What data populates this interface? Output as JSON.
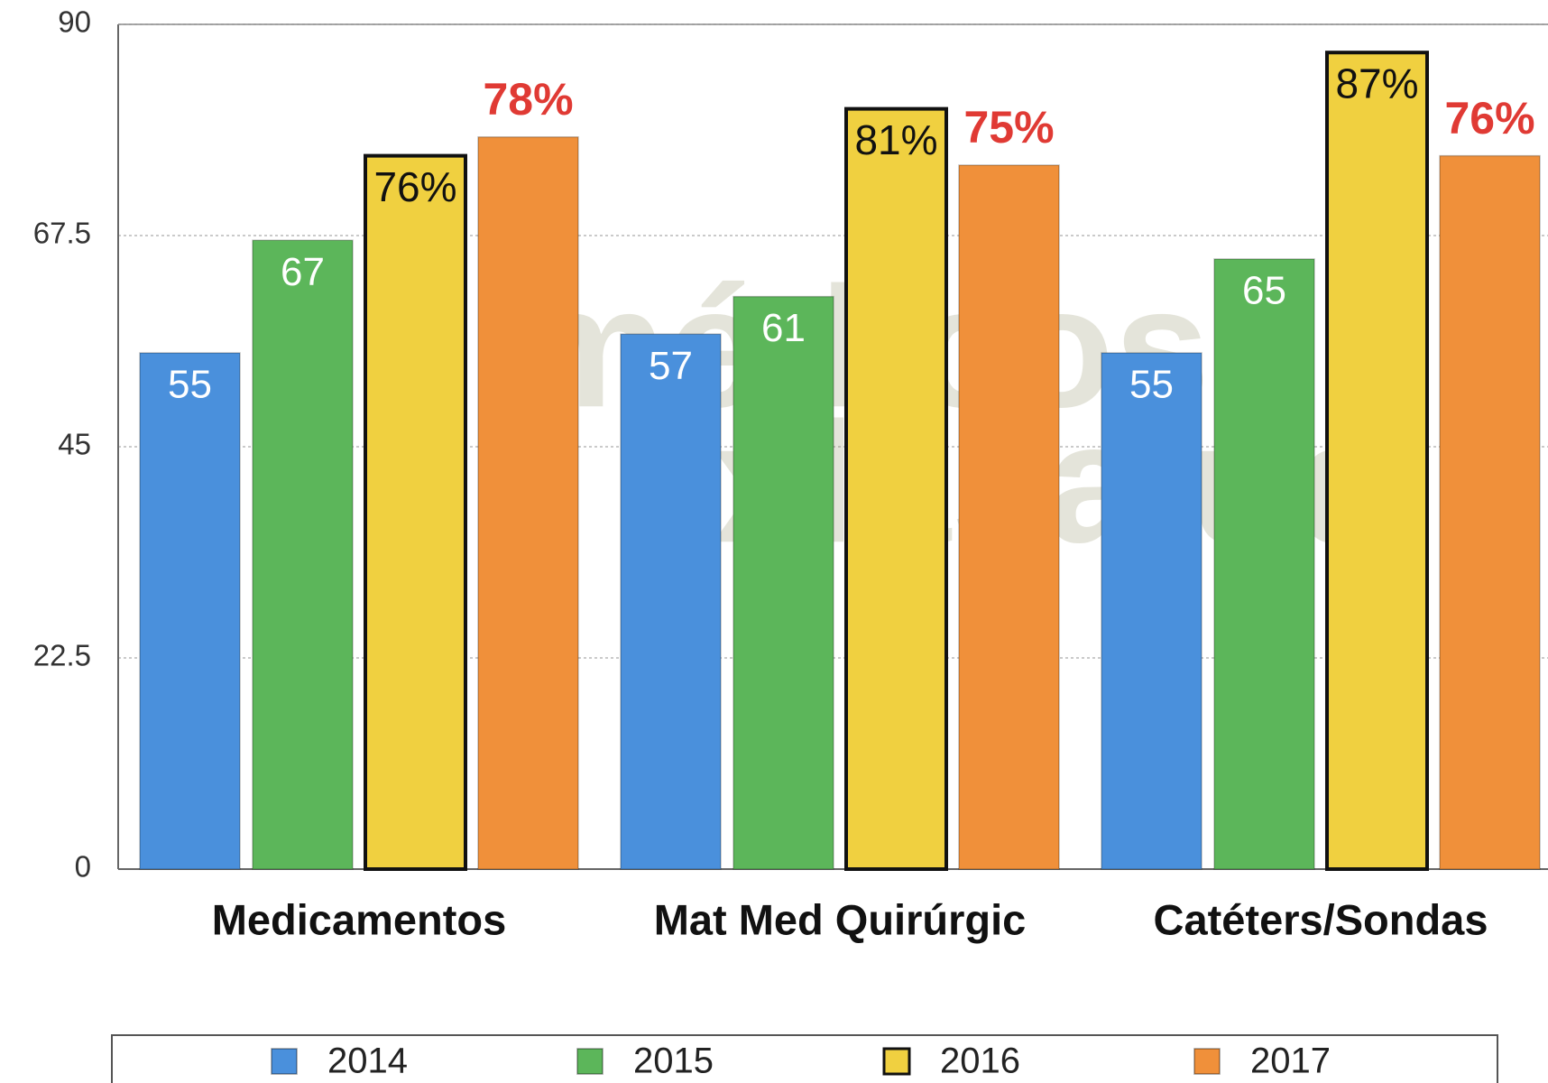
{
  "chart_data": {
    "type": "bar",
    "categories": [
      "Medicamentos",
      "Mat Med Quirúrgic",
      "Catéters/Sondas"
    ],
    "series": [
      {
        "name": "2014",
        "color": "#4a90dc",
        "values": [
          55,
          57,
          55
        ]
      },
      {
        "name": "2015",
        "color": "#5cb65a",
        "values": [
          67,
          61,
          65
        ]
      },
      {
        "name": "2016",
        "color": "#f0d040",
        "values": [
          76,
          81,
          87
        ],
        "value_labels": [
          "76%",
          "81%",
          "87%"
        ]
      },
      {
        "name": "2017",
        "color": "#f0903a",
        "values": [
          78,
          75,
          76
        ],
        "value_labels": [
          "78%",
          "75%",
          "76%"
        ]
      }
    ],
    "ylim": [
      0,
      90
    ],
    "yticks": [
      0,
      22.5,
      45,
      67.5,
      90
    ],
    "grid": true,
    "legend": "bottom",
    "watermark": [
      "médicos",
      "xlasalud"
    ]
  }
}
